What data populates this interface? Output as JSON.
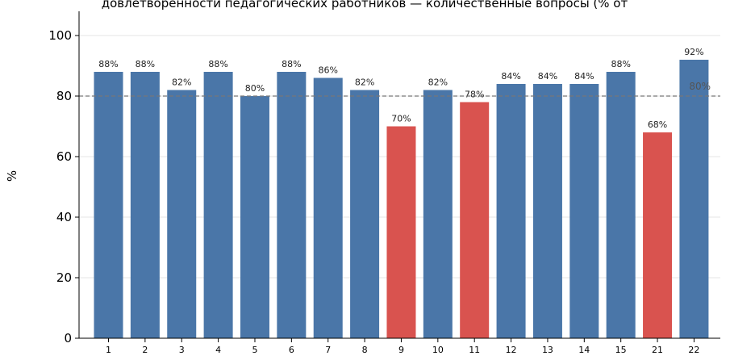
{
  "chart_data": {
    "type": "bar",
    "title": "довлетворенности педагогических работников — количественные вопросы (% от",
    "xlabel": "",
    "ylabel": "%",
    "ylim": [
      0,
      108
    ],
    "yticks": [
      0,
      20,
      40,
      60,
      80,
      100
    ],
    "categories": [
      "1",
      "2",
      "3",
      "4",
      "5",
      "6",
      "7",
      "8",
      "9",
      "10",
      "11",
      "12",
      "13",
      "14",
      "15",
      "21",
      "22"
    ],
    "values": [
      88,
      88,
      82,
      88,
      80,
      88,
      86,
      82,
      70,
      82,
      78,
      84,
      84,
      84,
      88,
      68,
      92
    ],
    "data_labels": [
      "88%",
      "88%",
      "82%",
      "88%",
      "80%",
      "88%",
      "86%",
      "82%",
      "70%",
      "82%",
      "78%",
      "84%",
      "84%",
      "84%",
      "88%",
      "68%",
      "92%"
    ],
    "reference_line": {
      "value": 80,
      "label": "80%",
      "style": "dashed"
    },
    "colors": {
      "above_threshold": "#4a76a8",
      "below_threshold": "#d9534f"
    },
    "grid": "horizontal",
    "legend": "none"
  }
}
